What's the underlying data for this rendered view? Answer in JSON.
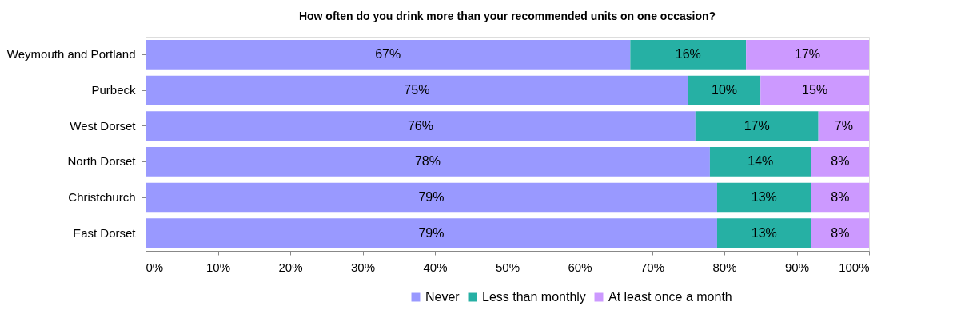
{
  "chart_data": {
    "type": "bar",
    "title": "How often do you drink more than your recommended units on one occasion?",
    "orientation": "horizontal",
    "stacked": true,
    "legend": "bottom",
    "grid": false,
    "categories": [
      "Weymouth and Portland",
      "Purbeck",
      "West Dorset",
      "North Dorset",
      "Christchurch",
      "East Dorset"
    ],
    "series": [
      {
        "name": "Never",
        "color": "#9999ff",
        "values": [
          67,
          75,
          76,
          78,
          79,
          79
        ],
        "value_labels": [
          "67%",
          "75%",
          "76%",
          "78%",
          "79%",
          "79%"
        ]
      },
      {
        "name": "Less than monthly",
        "color": "#26b0a4",
        "values": [
          16,
          10,
          17,
          14,
          13,
          13
        ],
        "value_labels": [
          "16%",
          "10%",
          "17%",
          "14%",
          "13%",
          "13%"
        ]
      },
      {
        "name": "At least once a month",
        "color": "#cc99ff",
        "values": [
          17,
          15,
          7,
          8,
          8,
          8
        ],
        "value_labels": [
          "17%",
          "15%",
          "7%",
          "8%",
          "8%",
          "8%"
        ]
      }
    ],
    "xlim": [
      0,
      100
    ],
    "xticks": [
      {
        "value": 0,
        "label": "0%"
      },
      {
        "value": 10,
        "label": "10%"
      },
      {
        "value": 20,
        "label": "20%"
      },
      {
        "value": 30,
        "label": "30%"
      },
      {
        "value": 40,
        "label": "40%"
      },
      {
        "value": 50,
        "label": "50%"
      },
      {
        "value": 60,
        "label": "60%"
      },
      {
        "value": 70,
        "label": "70%"
      },
      {
        "value": 80,
        "label": "80%"
      },
      {
        "value": 90,
        "label": "90%"
      },
      {
        "value": 100,
        "label": "100%"
      }
    ]
  }
}
